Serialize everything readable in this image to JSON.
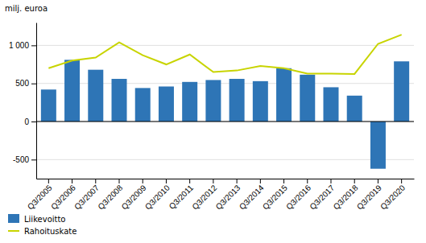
{
  "chart_data": {
    "type": "bar",
    "ylabel": "milj. euroa",
    "categories": [
      "Q3/2005",
      "Q3/2006",
      "Q3/2007",
      "Q3/2008",
      "Q3/2009",
      "Q3/2010",
      "Q3/2011",
      "Q3/2012",
      "Q3/2013",
      "Q3/2014",
      "Q3/2015",
      "Q3/2016",
      "Q3/2017",
      "Q3/2018",
      "Q3/2019",
      "Q3/2020"
    ],
    "series": [
      {
        "name": "Liikevoitto",
        "type": "bar",
        "color": "#2e75b6",
        "values": [
          420,
          810,
          680,
          560,
          440,
          460,
          520,
          545,
          560,
          530,
          700,
          615,
          450,
          340,
          -620,
          790
        ]
      },
      {
        "name": "Rahoituskate",
        "type": "line",
        "color": "#c8d400",
        "values": [
          700,
          800,
          840,
          1040,
          870,
          750,
          880,
          650,
          670,
          730,
          700,
          630,
          630,
          625,
          1020,
          1140
        ]
      }
    ],
    "ylim": [
      -750,
      1300
    ],
    "yticks": [
      -500,
      0,
      500,
      {
        "value": 1000,
        "label": "1 000"
      }
    ],
    "grid": true,
    "legend": "lower left"
  }
}
